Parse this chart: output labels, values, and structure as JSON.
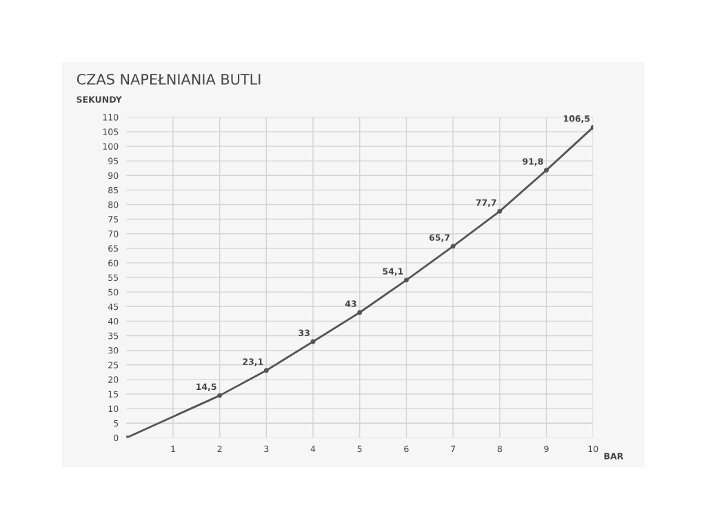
{
  "chart_data": {
    "type": "line",
    "title": "CZAS NAPEŁNIANIA BUTLI",
    "ylabel": "SEKUNDY",
    "xlabel": "BAR",
    "x": [
      0,
      2,
      3,
      4,
      5,
      6,
      7,
      8,
      9,
      10
    ],
    "series": [
      {
        "color": "#555555",
        "values": [
          0,
          14.5,
          23.1,
          33,
          43,
          54.1,
          65.7,
          77.7,
          91.8,
          106.5
        ],
        "value_labels": [
          null,
          "14,5",
          "23,1",
          "33",
          "43",
          "54,1",
          "65,7",
          "77,7",
          "91,8",
          "106,5"
        ]
      }
    ],
    "xlim": [
      0,
      10
    ],
    "xticks": [
      1,
      2,
      3,
      4,
      5,
      6,
      7,
      8,
      9,
      10
    ],
    "ylim": [
      0,
      110
    ],
    "yticks": [
      0,
      5,
      10,
      15,
      20,
      25,
      30,
      35,
      40,
      45,
      50,
      55,
      60,
      65,
      70,
      75,
      80,
      85,
      90,
      95,
      100,
      105,
      110
    ],
    "grid": true,
    "marker": "circle",
    "line_style": "solid",
    "legend": false
  }
}
